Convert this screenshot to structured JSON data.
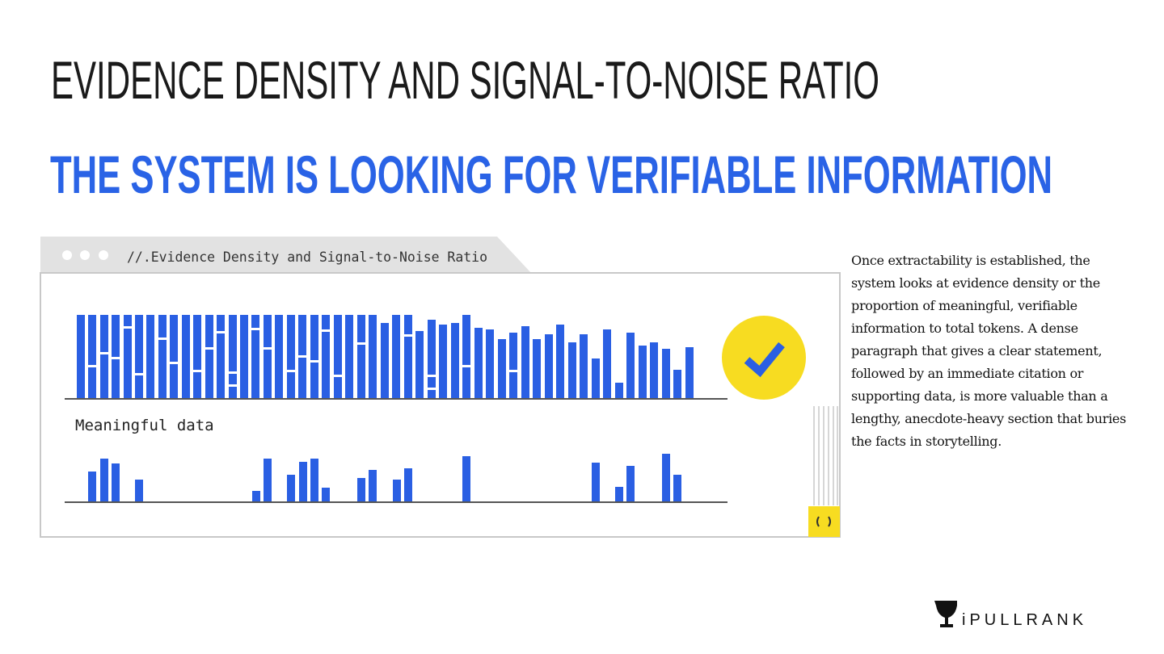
{
  "title": "EVIDENCE DENSITY AND SIGNAL-TO-NOISE RATIO",
  "subtitle": "THE SYSTEM IS LOOKING FOR VERIFIABLE INFORMATION",
  "window": {
    "tab_title": "//.Evidence Density and Signal-to-Noise Ratio",
    "label": "Meaningful data"
  },
  "body": "Once extractability is established, the system looks at evidence density or the proportion of meaningful, verifiable information to total tokens. A dense paragraph that gives a clear statement, followed by an immediate citation or supporting data, is more valuable than a lengthy, anecdote-heavy section that buries the facts in storytelling.",
  "logo": "iPULLRANK"
}
